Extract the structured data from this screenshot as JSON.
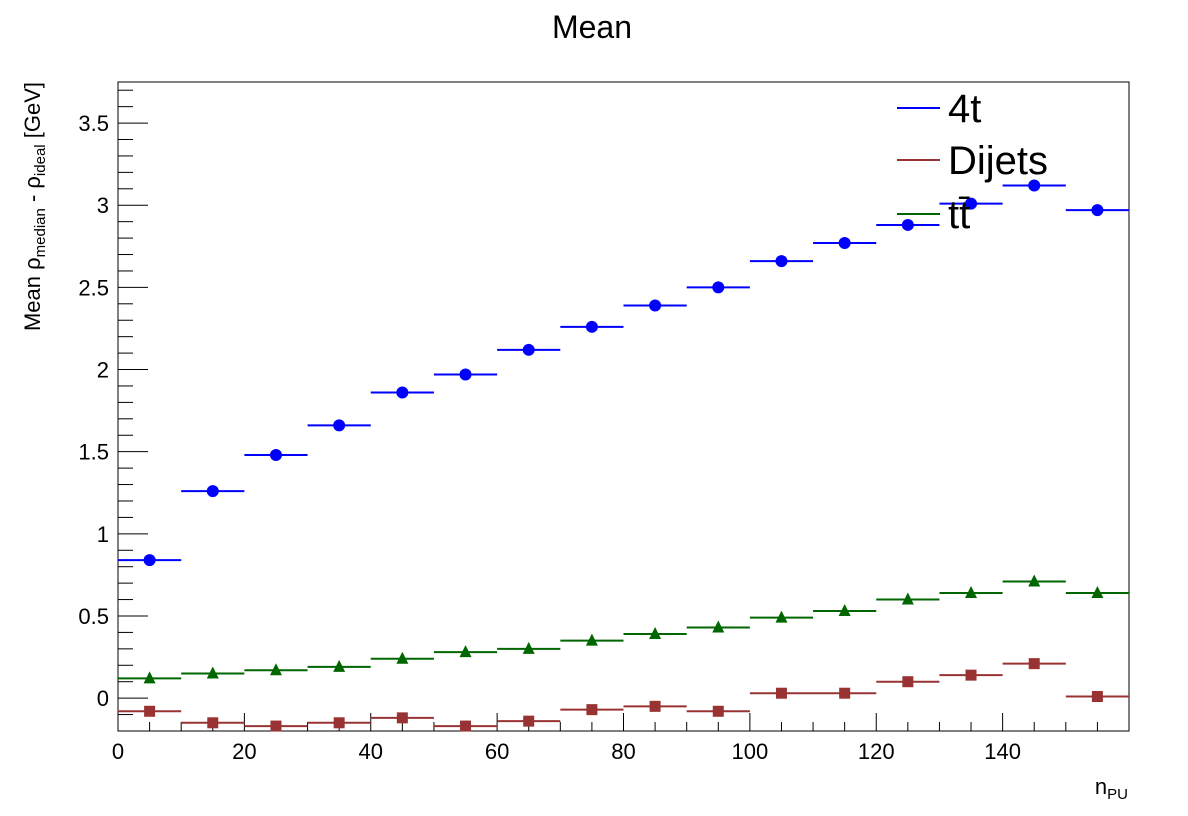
{
  "chart_data": {
    "type": "scatter",
    "title": "Mean",
    "xlabel": {
      "main": "n",
      "sub": "PU"
    },
    "ylabel": {
      "p1": "Mean  ρ",
      "s1": "median",
      "p2": " - ρ",
      "s2": "ideal",
      "p3": " [GeV]"
    },
    "xlim": [
      0,
      160
    ],
    "ylim": [
      -0.2,
      3.75
    ],
    "x_ticks": [
      0,
      20,
      40,
      60,
      80,
      100,
      120,
      140
    ],
    "x_tick_labels": [
      "0",
      "20",
      "40",
      "60",
      "80",
      "100",
      "120",
      "140"
    ],
    "y_ticks": [
      0,
      0.5,
      1,
      1.5,
      2,
      2.5,
      3,
      3.5
    ],
    "y_tick_labels": [
      "0",
      "0.5",
      "1",
      "1.5",
      "2",
      "2.5",
      "3",
      "3.5"
    ],
    "grid": false,
    "legend_position": "top-right",
    "bin_width": 10,
    "x": [
      5,
      15,
      25,
      35,
      45,
      55,
      65,
      75,
      85,
      95,
      105,
      115,
      125,
      135,
      145,
      155
    ],
    "series": [
      {
        "name": "4t",
        "color": "#0000ff",
        "marker": "circle",
        "values": [
          0.84,
          1.26,
          1.48,
          1.66,
          1.86,
          1.97,
          2.12,
          2.26,
          2.39,
          2.5,
          2.66,
          2.77,
          2.88,
          3.01,
          3.12,
          2.97
        ]
      },
      {
        "name": "Dijets",
        "color": "#993333",
        "marker": "square",
        "values": [
          -0.08,
          -0.15,
          -0.17,
          -0.15,
          -0.12,
          -0.17,
          -0.14,
          -0.07,
          -0.05,
          -0.08,
          0.03,
          0.03,
          0.1,
          0.14,
          0.21,
          0.01
        ]
      },
      {
        "name": "tt̄",
        "color": "#006600",
        "marker": "triangle",
        "values": [
          0.12,
          0.15,
          0.17,
          0.19,
          0.24,
          0.28,
          0.3,
          0.35,
          0.39,
          0.43,
          0.49,
          0.53,
          0.6,
          0.64,
          0.71,
          0.64
        ]
      }
    ]
  }
}
